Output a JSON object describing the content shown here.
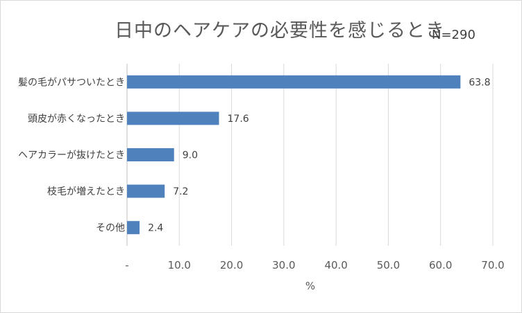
{
  "chart_data": {
    "type": "bar",
    "orientation": "horizontal",
    "title": "日中のヘアケアの必要性を感じるとき",
    "annotation": "N=290",
    "categories": [
      "髪の毛がパサついたとき",
      "頭皮が赤くなったとき",
      "ヘアカラーが抜けたとき",
      "枝毛が増えたとき",
      "その他"
    ],
    "values": [
      63.8,
      17.6,
      9.0,
      7.2,
      2.4
    ],
    "data_labels": [
      "63.8",
      "17.6",
      "9.0",
      "7.2",
      "2.4"
    ],
    "xlabel": "%",
    "ylabel": "",
    "xlim": [
      0,
      70
    ],
    "x_ticks": [
      0,
      10,
      20,
      30,
      40,
      50,
      60,
      70
    ],
    "x_tick_labels": [
      "-",
      "10.0",
      "20.0",
      "30.0",
      "40.0",
      "50.0",
      "60.0",
      "70.0"
    ],
    "grid": "vertical",
    "legend": "none",
    "bar_color": "#4f81bd",
    "grid_color": "#d9d9d9"
  }
}
